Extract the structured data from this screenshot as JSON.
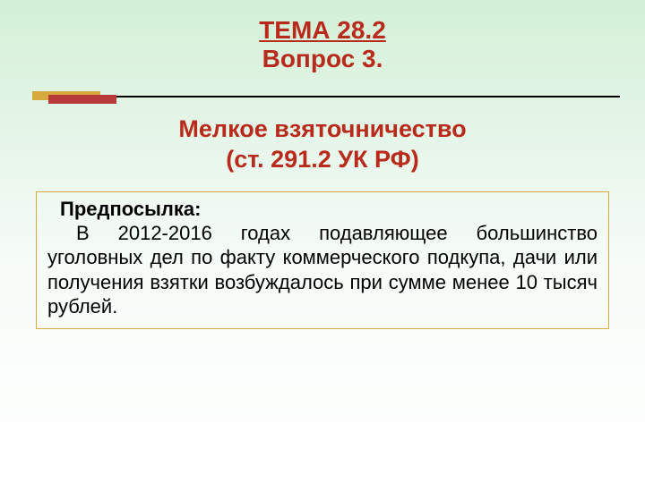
{
  "colors": {
    "heading": "#b82a1b",
    "subtitle": "#b82a1b",
    "body_text": "#000000",
    "divider": "#000000",
    "accent_gold": "#d6a93e",
    "accent_red": "#b93a3a",
    "box_border": "#d6a93e"
  },
  "heading": {
    "tema": "ТЕМА 28.2",
    "vopros": "Вопрос 3."
  },
  "subtitle": {
    "line1": "Мелкое взяточничество",
    "line2": "(ст. 291.2 УК РФ)"
  },
  "box": {
    "label": "Предпосылка:",
    "body": "В 2012-2016 годах подавляющее большинство уголовных дел по факту коммерческого подкупа, дачи или получения взятки возбуждалось при сумме менее 10 тысяч рублей."
  },
  "typography": {
    "heading_fontsize": 28,
    "subtitle_fontsize": 27,
    "body_fontsize": 22
  }
}
